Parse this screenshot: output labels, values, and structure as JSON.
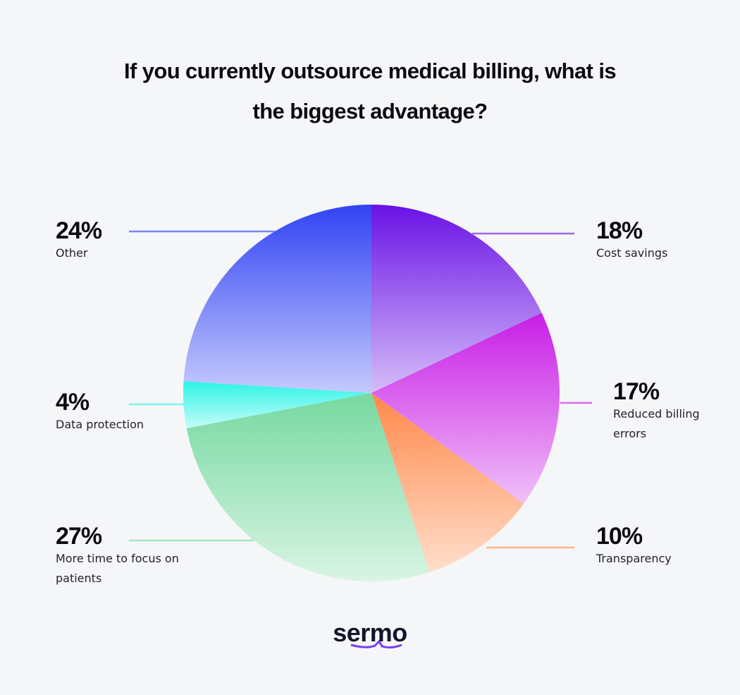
{
  "chart_data": {
    "type": "pie",
    "title": "If you currently outsource medical billing, what is the biggest advantage?",
    "categories": [
      "Cost savings",
      "Reduced billing errors",
      "Transparency",
      "More time to focus on patients",
      "Data protection",
      "Other"
    ],
    "values": [
      18,
      17,
      10,
      27,
      4,
      24
    ],
    "value_labels": [
      "18%",
      "17%",
      "10%",
      "27%",
      "4%",
      "24%"
    ],
    "colors": [
      "#6a12e6",
      "#c81de6",
      "#ff884a",
      "#76d9a0",
      "#2ef3e6",
      "#3143f4"
    ],
    "logo": "sermo"
  }
}
